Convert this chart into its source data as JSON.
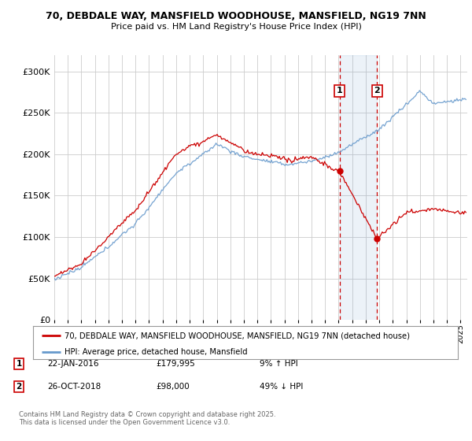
{
  "title_line1": "70, DEBDALE WAY, MANSFIELD WOODHOUSE, MANSFIELD, NG19 7NN",
  "title_line2": "Price paid vs. HM Land Registry's House Price Index (HPI)",
  "ylim": [
    0,
    320000
  ],
  "yticks": [
    0,
    50000,
    100000,
    150000,
    200000,
    250000,
    300000
  ],
  "ytick_labels": [
    "£0",
    "£50K",
    "£100K",
    "£150K",
    "£200K",
    "£250K",
    "£300K"
  ],
  "xlim_start": 1995.0,
  "xlim_end": 2025.5,
  "transaction1": {
    "date_num": 2016.06,
    "price": 179995,
    "label": "1",
    "date_str": "22-JAN-2016",
    "price_str": "£179,995",
    "change": "9% ↑ HPI"
  },
  "transaction2": {
    "date_num": 2018.83,
    "price": 98000,
    "label": "2",
    "date_str": "26-OCT-2018",
    "price_str": "£98,000",
    "change": "49% ↓ HPI"
  },
  "line_color_price": "#cc0000",
  "line_color_hpi": "#6699cc",
  "grid_color": "#cccccc",
  "bg_color": "#ffffff",
  "legend_label_price": "70, DEBDALE WAY, MANSFIELD WOODHOUSE, MANSFIELD, NG19 7NN (detached house)",
  "legend_label_hpi": "HPI: Average price, detached house, Mansfield",
  "footnote": "Contains HM Land Registry data © Crown copyright and database right 2025.\nThis data is licensed under the Open Government Licence v3.0.",
  "xtick_years": [
    1995,
    1996,
    1997,
    1998,
    1999,
    2000,
    2001,
    2002,
    2003,
    2004,
    2005,
    2006,
    2007,
    2008,
    2009,
    2010,
    2011,
    2012,
    2013,
    2014,
    2015,
    2016,
    2017,
    2018,
    2019,
    2020,
    2021,
    2022,
    2023,
    2024,
    2025
  ]
}
